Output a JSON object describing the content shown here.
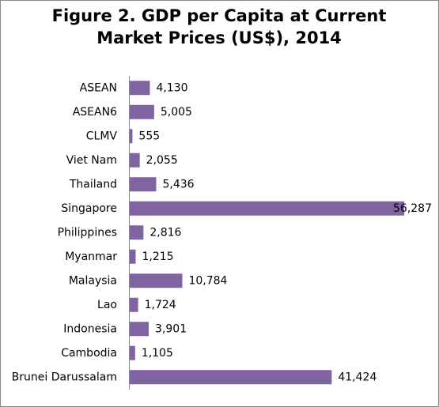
{
  "chart_data": {
    "type": "hbar",
    "title": [
      "Figure 2. GDP per Capita at Current",
      "Market Prices (US$), 2014"
    ],
    "categories": [
      "ASEAN",
      "ASEAN6",
      "CLMV",
      "Viet Nam",
      "Thailand",
      "Singapore",
      "Philippines",
      "Myanmar",
      "Malaysia",
      "Lao",
      "Indonesia",
      "Cambodia",
      "Brunei Darussalam"
    ],
    "values": [
      4130,
      5005,
      555,
      2055,
      5436,
      56287,
      2816,
      1215,
      10784,
      1724,
      3901,
      1105,
      41424
    ],
    "value_labels": [
      "4,130",
      "5,005",
      "555",
      "2,055",
      "5,436",
      "56,287",
      "2,816",
      "1,215",
      "10,784",
      "1,724",
      "3,901",
      "1,105",
      "41,424"
    ],
    "color": "#8064a2"
  }
}
